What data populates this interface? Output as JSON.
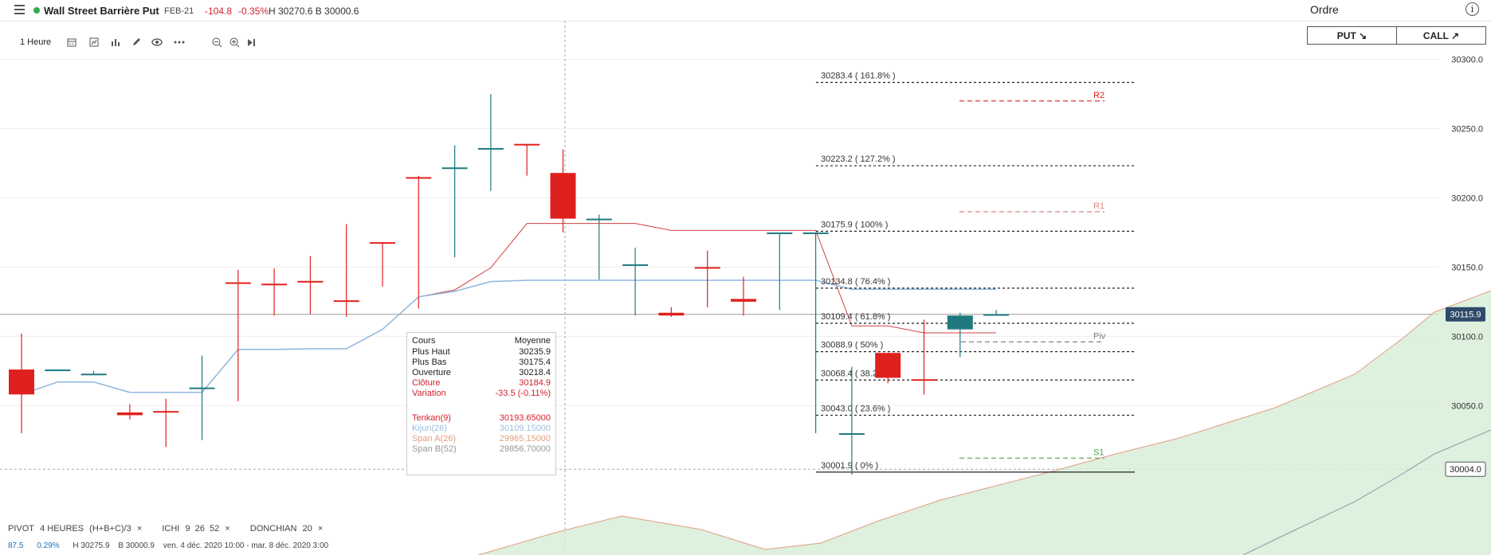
{
  "header": {
    "instrument": "Wall Street Barrière Put",
    "expiry": "FEB-21",
    "change": "-104.8",
    "change_pct": "-0.35%",
    "high_low": "H 30270.6 B 30000.6",
    "order_label": "Ordre",
    "info_icon": "i",
    "live_color": "#34a853"
  },
  "toolbar": {
    "timeframe": "1 Heure",
    "icons": [
      "calendar-icon",
      "chart-type-icon",
      "bar-chart-icon",
      "pencil-icon",
      "eye-icon",
      "more-icon",
      "zoom-out-icon",
      "zoom-in-icon",
      "skip-end-icon"
    ]
  },
  "order": {
    "put_label": "PUT ↘",
    "call_label": "CALL ↗"
  },
  "indicators": {
    "pivot": "PIVOT",
    "pivot_val": "4 HEURES",
    "pivot_formula": "(H+B+C)/3",
    "ichi": "ICHI",
    "ichi_vals": "9  26  52",
    "donchian": "DONCHIAN",
    "donchian_val": "20",
    "close_glyph": "×"
  },
  "footer": {
    "price": "87.5",
    "pct": "0.29%",
    "h": "H 30275.9",
    "b": "B 30000.9",
    "range": "ven. 4 déc. 2020 10:00 - mar. 8 déc. 2020 3:00"
  },
  "tooltip": {
    "title_l": "Cours",
    "title_r": "Moyenne",
    "rows": [
      {
        "label": "Plus Haut",
        "value": "30235.9",
        "color": "#222"
      },
      {
        "label": "Plus Bas",
        "value": "30175.4",
        "color": "#222"
      },
      {
        "label": "Ouverture",
        "value": "30218.4",
        "color": "#222"
      },
      {
        "label": "Clôture",
        "value": "30184.9",
        "color": "#d2222d"
      },
      {
        "label": "Variation",
        "value": "-33.5 (-0.11%)",
        "color": "#d2222d"
      },
      {
        "label": "Tenkan(9)",
        "value": "30193.65000",
        "color": "#d2222d"
      },
      {
        "label": "Kijun(26)",
        "value": "30109.15000",
        "color": "#9bbde0"
      },
      {
        "label": "Span A(26)",
        "value": "29965.15000",
        "color": "#e0a080"
      },
      {
        "label": "Span B(52)",
        "value": "29856.70000",
        "color": "#999999"
      }
    ]
  },
  "chart_data": {
    "type": "candlestick",
    "ylim": [
      29942,
      30328
    ],
    "yticks": [
      "30300.0",
      "30250.0",
      "30200.0",
      "30150.0",
      "30100.0",
      "30050.0"
    ],
    "ytick_values": [
      30300,
      30250,
      30200,
      30150,
      30100,
      30050
    ],
    "current_price": {
      "value": 30115.9,
      "label": "30115.9"
    },
    "cursor_price": {
      "value": 30004.0,
      "label": "30004.0"
    },
    "colors": {
      "up": "#1f7a80",
      "down": "#e0201e",
      "tenkan": "#d04040",
      "kijun": "#8fb7e0",
      "spanA": "#e0a080",
      "spanB": "#8a9aa8",
      "cloud": "#d6ecd6"
    },
    "candles": [
      [
        30076,
        30058,
        30102,
        30030
      ],
      [
        30076,
        30076,
        30076,
        30076
      ],
      [
        30073,
        30073,
        30075,
        30072
      ],
      [
        30045,
        30043,
        30051,
        30040
      ],
      [
        30046,
        30045,
        30055,
        30020
      ],
      [
        30063,
        30063,
        30086,
        30025
      ],
      [
        30139,
        30138,
        30148,
        30053
      ],
      [
        30138,
        30137,
        30149,
        30115
      ],
      [
        30140,
        30139,
        30158,
        30116
      ],
      [
        30126,
        30125,
        30181,
        30114
      ],
      [
        30168,
        30167,
        30168,
        30136
      ],
      [
        30215,
        30214,
        30216,
        30120
      ],
      [
        30222,
        30222,
        30238,
        30157
      ],
      [
        30235,
        30236,
        30275,
        30205
      ],
      [
        30239,
        30238,
        30239,
        30216
      ],
      [
        30218,
        30185,
        30235,
        30175
      ],
      [
        30185,
        30185,
        30188,
        30141
      ],
      [
        30152,
        30152,
        30164,
        30115
      ],
      [
        30117,
        30115,
        30121,
        30114
      ],
      [
        30150,
        30149,
        30162,
        30121
      ],
      [
        30127,
        30125,
        30143,
        30115
      ],
      [
        30175,
        30175,
        30175,
        30119
      ],
      [
        30175,
        30175,
        30175,
        30030
      ],
      [
        30030,
        30030,
        30078,
        30000
      ],
      [
        30088,
        30070,
        30088,
        30066
      ],
      [
        30069,
        30068,
        30112,
        30058
      ],
      [
        30105,
        30115,
        30117,
        30085
      ],
      [
        30116,
        30116,
        30119,
        30115
      ]
    ],
    "fibo": [
      {
        "value": 30283.4,
        "label": "30283.4 ( 161.8% )"
      },
      {
        "value": 30223.2,
        "label": "30223.2 ( 127.2% )"
      },
      {
        "value": 30175.9,
        "label": "30175.9 ( 100% )"
      },
      {
        "value": 30134.8,
        "label": "30134.8 ( 76.4% )"
      },
      {
        "value": 30109.4,
        "label": "30109.4 ( 61.8% )"
      },
      {
        "value": 30088.9,
        "label": "30088.9 ( 50% )"
      },
      {
        "value": 30068.4,
        "label": "30068.4 ( 38.2% )"
      },
      {
        "value": 30043.0,
        "label": "30043.0 ( 23.6% )"
      },
      {
        "value": 30001.9,
        "label": "30001.9 ( 0% )"
      }
    ],
    "pivots": [
      {
        "name": "R2",
        "value": 30270,
        "color": "#e0201e"
      },
      {
        "name": "R1",
        "value": 30190,
        "color": "#e08080"
      },
      {
        "name": "Piv",
        "value": 30096,
        "color": "#777777"
      },
      {
        "name": "S1",
        "value": 30012,
        "color": "#4aa84a"
      }
    ]
  }
}
